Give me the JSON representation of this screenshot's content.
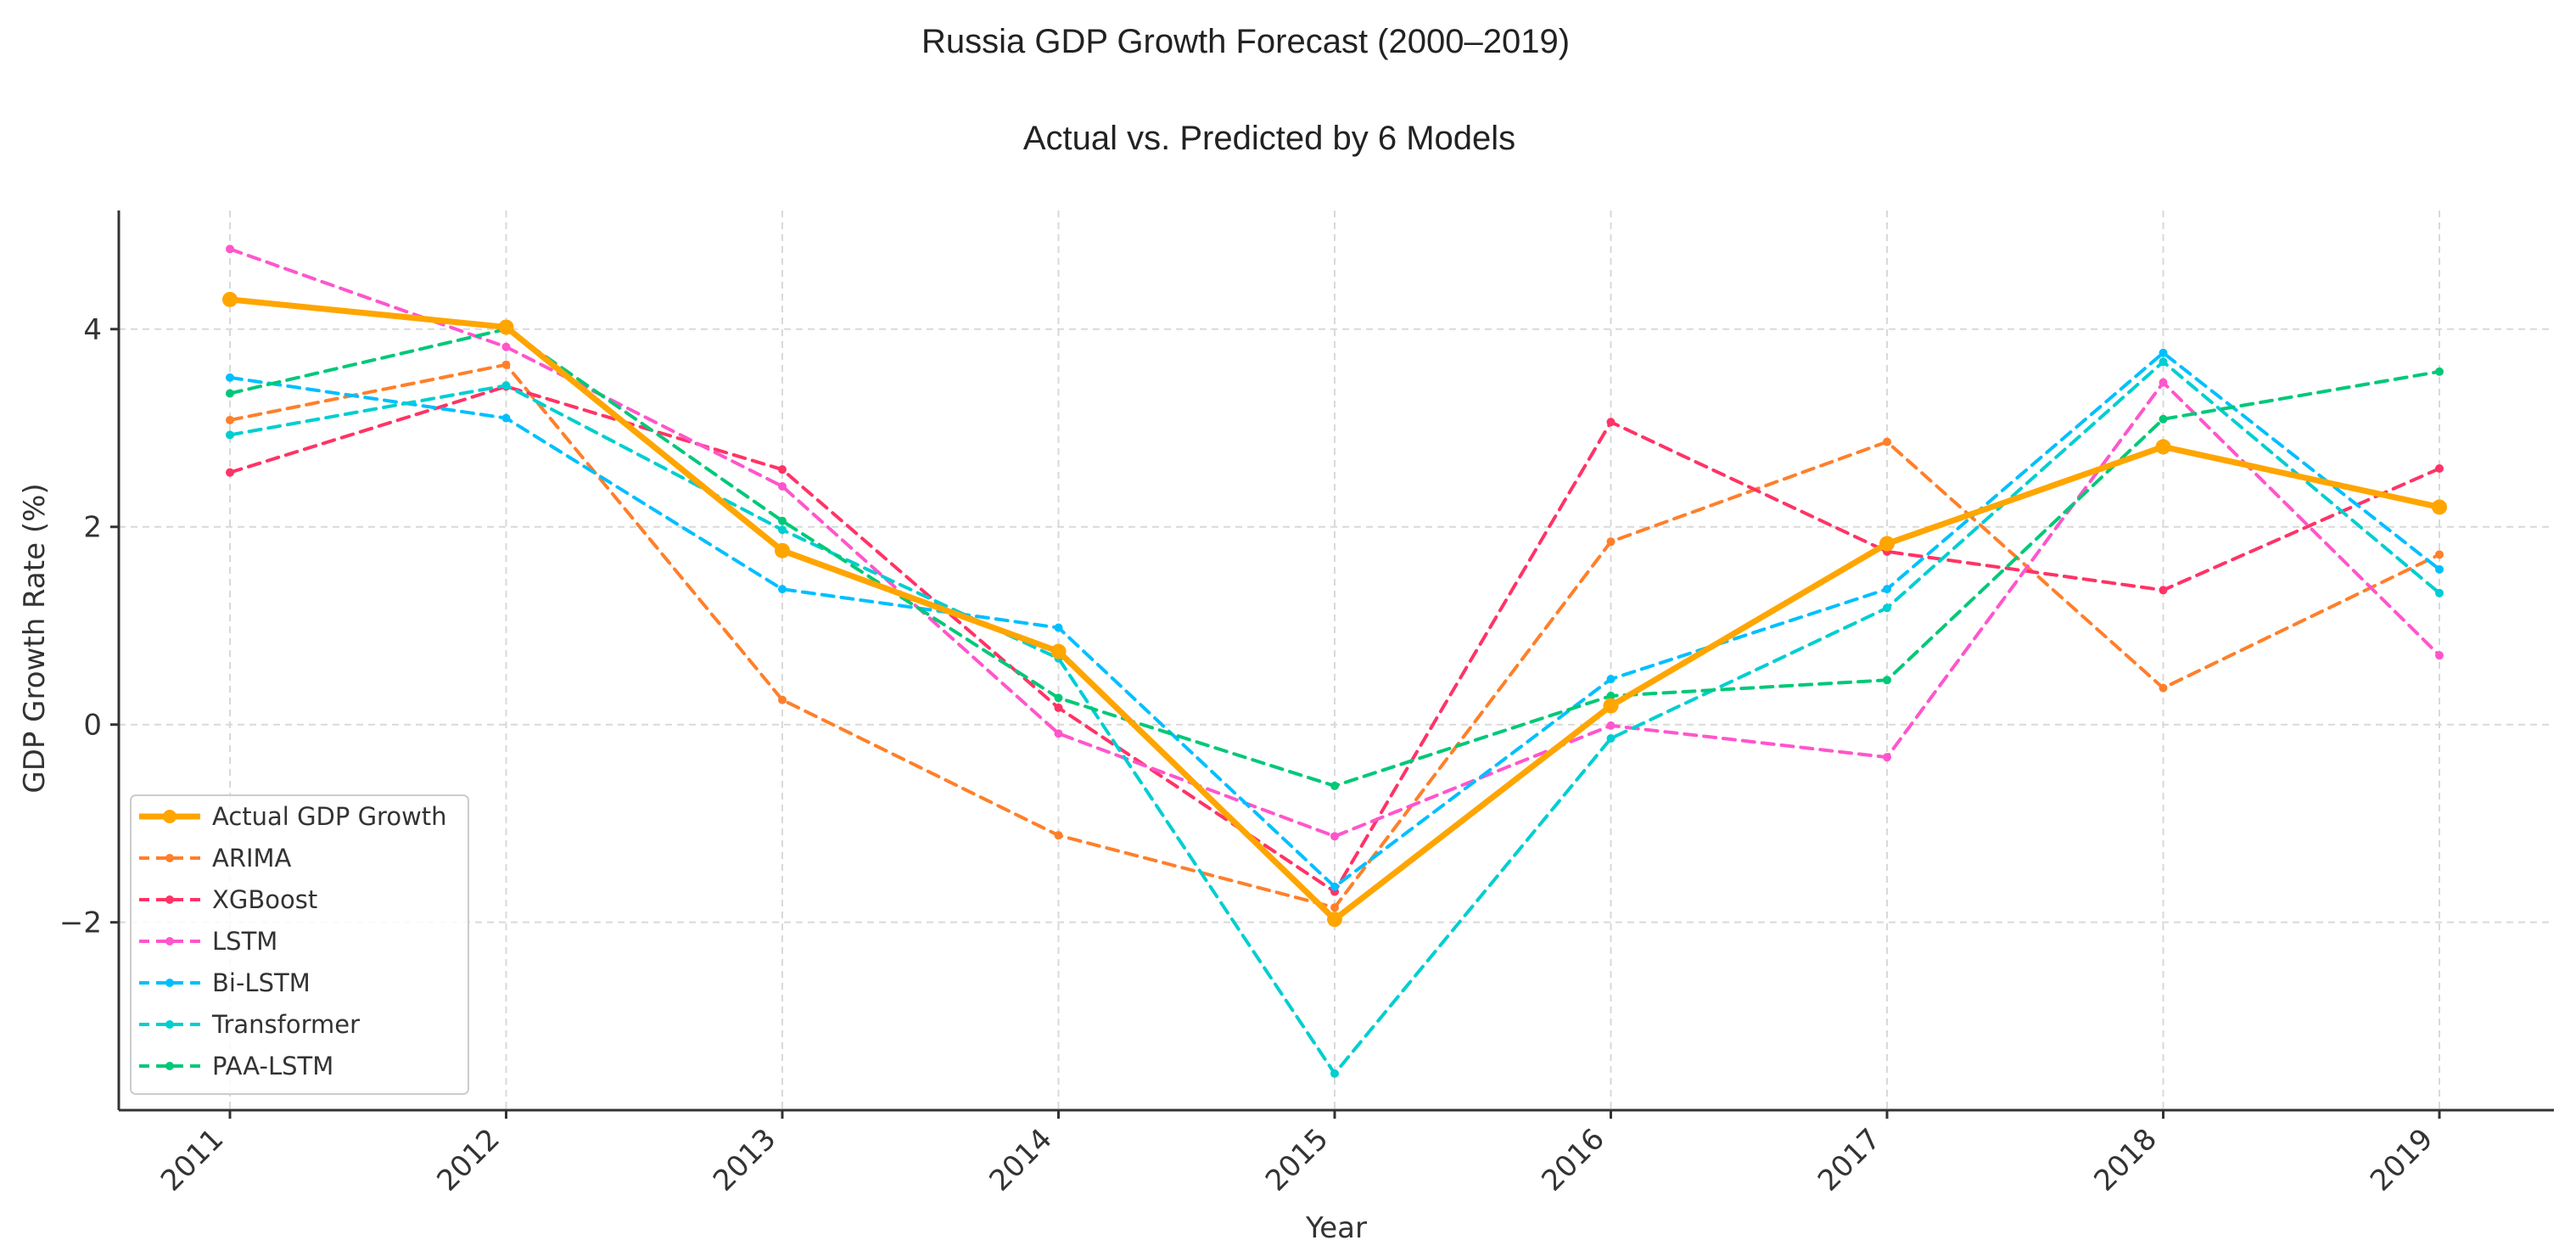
{
  "chart_data": {
    "type": "line",
    "title": "Russia GDP Growth Forecast (2000–2019)",
    "subtitle": "Actual vs. Predicted by 6 Models",
    "xlabel": "Year",
    "ylabel": "GDP Growth Rate (%)",
    "categories": [
      "2011",
      "2012",
      "2013",
      "2014",
      "2015",
      "2016",
      "2017",
      "2018",
      "2019"
    ],
    "ylim": [
      -3.9,
      5.2
    ],
    "yticks": [
      -2,
      0,
      2,
      4
    ],
    "ytick_labels": [
      "−2",
      "0",
      "2",
      "4"
    ],
    "grid": true,
    "legend_position": "lower-left",
    "series": [
      {
        "name": "Actual GDP Growth",
        "color": "#FFA500",
        "style": "solid",
        "values": [
          4.3,
          4.02,
          1.76,
          0.74,
          -1.97,
          0.19,
          1.83,
          2.81,
          2.2
        ]
      },
      {
        "name": "ARIMA",
        "color": "#FF7F2A",
        "style": "dashed",
        "values": [
          3.08,
          3.64,
          0.25,
          -1.12,
          -1.85,
          1.85,
          2.86,
          0.37,
          1.72
        ]
      },
      {
        "name": "XGBoost",
        "color": "#FF3366",
        "style": "dashed",
        "values": [
          2.55,
          3.42,
          2.58,
          0.17,
          -1.69,
          3.06,
          1.75,
          1.36,
          2.59
        ]
      },
      {
        "name": "LSTM",
        "color": "#FF55CC",
        "style": "dashed",
        "values": [
          4.81,
          3.82,
          2.41,
          -0.09,
          -1.13,
          -0.01,
          -0.33,
          3.46,
          0.7
        ]
      },
      {
        "name": "Bi-LSTM",
        "color": "#00BFFF",
        "style": "dashed",
        "values": [
          3.51,
          3.1,
          1.37,
          0.98,
          -1.64,
          0.46,
          1.37,
          3.76,
          1.57
        ]
      },
      {
        "name": "Transformer",
        "color": "#00CED1",
        "style": "dashed",
        "values": [
          2.93,
          3.43,
          1.97,
          0.67,
          -3.53,
          -0.14,
          1.18,
          3.67,
          1.33
        ]
      },
      {
        "name": "PAA-LSTM",
        "color": "#00C878",
        "style": "dashed",
        "values": [
          3.35,
          4.0,
          2.06,
          0.27,
          -0.62,
          0.29,
          0.45,
          3.09,
          3.57
        ]
      }
    ]
  }
}
